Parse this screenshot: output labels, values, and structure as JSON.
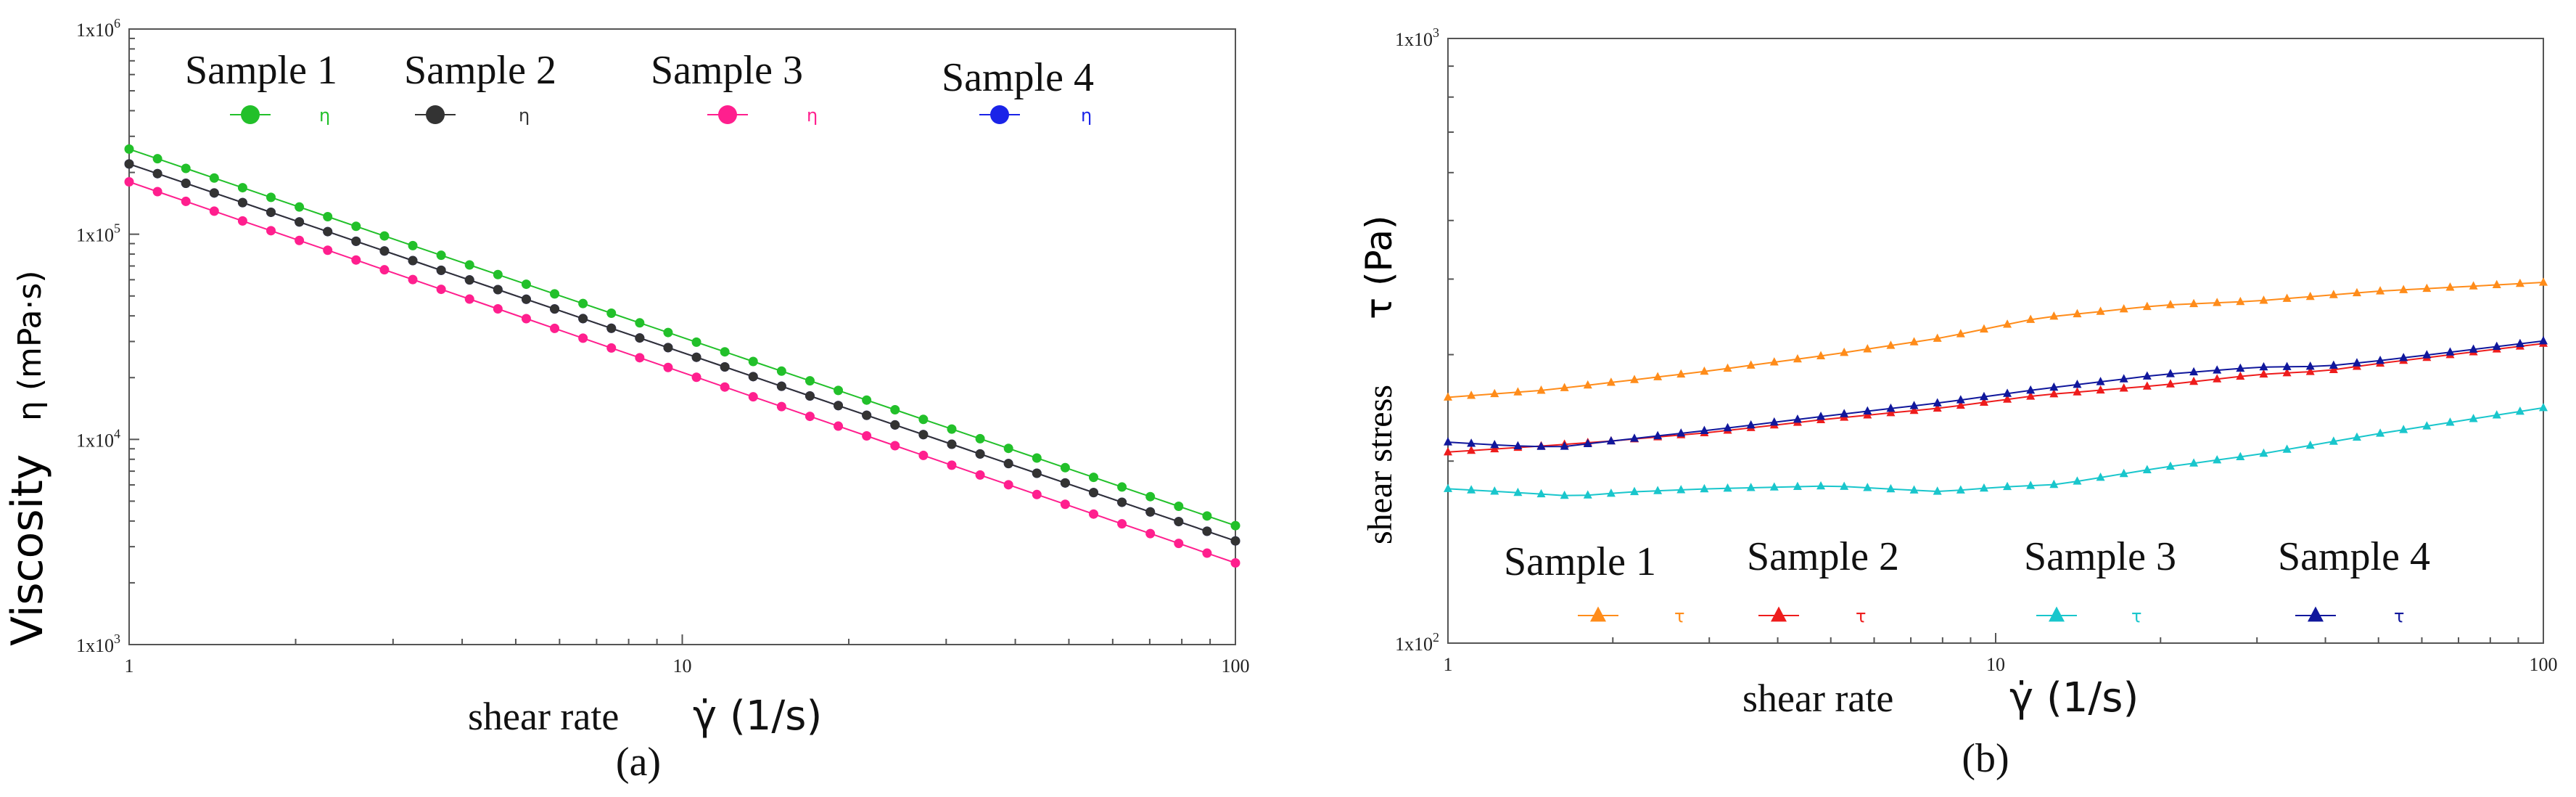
{
  "chart_data": [
    {
      "type": "line",
      "panel_label": "(a)",
      "title": "",
      "xlabel_prefix": "shear rate",
      "xlabel_symbol": "γ̇ (1/s)",
      "ylabel_prefix": "Viscosity",
      "ylabel_symbol": "η (mPa·s)",
      "xscale": "log",
      "yscale": "log",
      "xlim": [
        1,
        100
      ],
      "ylim": [
        1000,
        1000000
      ],
      "xticks": [
        {
          "value": 1,
          "label": "1"
        },
        {
          "value": 10,
          "label": "10"
        },
        {
          "value": 100,
          "label": "100"
        }
      ],
      "yticks": [
        {
          "value": 1000,
          "base": "1x10",
          "exp": "3"
        },
        {
          "value": 10000,
          "base": "1x10",
          "exp": "4"
        },
        {
          "value": 100000,
          "base": "1x10",
          "exp": "5"
        },
        {
          "value": 1000000,
          "base": "1x10",
          "exp": "6"
        }
      ],
      "grid": false,
      "legend_position": "top",
      "points_per_series": 40,
      "series": [
        {
          "name": "Sample 1",
          "symbol": "η",
          "marker": "circle",
          "color": "#22c02a",
          "y_start": 260000,
          "y_end": 3800
        },
        {
          "name": "Sample 2",
          "symbol": "η",
          "marker": "circle",
          "color": "#333333",
          "y_start": 220000,
          "y_end": 3200
        },
        {
          "name": "Sample 3",
          "symbol": "η",
          "marker": "circle",
          "color": "#ff1f8e",
          "y_start": 180000,
          "y_end": 2500
        },
        {
          "name": "Sample 4",
          "symbol": "η",
          "marker": "circle",
          "color": "#1a23e8",
          "y_start": 220000,
          "y_end": 3200
        }
      ]
    },
    {
      "type": "line",
      "panel_label": "(b)",
      "title": "",
      "xlabel_prefix": "shear rate",
      "xlabel_symbol": "γ̇ (1/s)",
      "ylabel_prefix": "shear stress",
      "ylabel_symbol": "τ (Pa)",
      "xscale": "log",
      "yscale": "log",
      "xlim": [
        1,
        100
      ],
      "ylim": [
        100,
        1000
      ],
      "xticks": [
        {
          "value": 1,
          "label": "1"
        },
        {
          "value": 10,
          "label": "10"
        },
        {
          "value": 100,
          "label": "100"
        }
      ],
      "yticks": [
        {
          "value": 100,
          "base": "1x10",
          "exp": "2"
        },
        {
          "value": 1000,
          "base": "1x10",
          "exp": "3"
        }
      ],
      "grid": false,
      "legend_position": "bottom",
      "series": [
        {
          "name": "Sample 1",
          "symbol": "τ",
          "marker": "triangle",
          "color": "#ff8c1a",
          "x": [
            1,
            1.5,
            2,
            3,
            5,
            8,
            12,
            20,
            30,
            50,
            100
          ],
          "y": [
            255,
            262,
            270,
            282,
            300,
            320,
            345,
            362,
            368,
            382,
            395
          ]
        },
        {
          "name": "Sample 2",
          "symbol": "τ",
          "marker": "triangle",
          "color": "#ee1c1c",
          "x": [
            1,
            1.5,
            2,
            3,
            5,
            8,
            12,
            20,
            30,
            40,
            50,
            100
          ],
          "y": [
            207,
            212,
            216,
            223,
            235,
            245,
            257,
            267,
            278,
            282,
            290,
            313
          ]
        },
        {
          "name": "Sample 3",
          "symbol": "τ",
          "marker": "triangle",
          "color": "#19c6cc",
          "x": [
            1,
            1.4,
            1.7,
            2.2,
            3,
            5,
            8,
            10,
            13,
            20,
            30,
            50,
            100
          ],
          "y": [
            180,
            177,
            175,
            178,
            180,
            182,
            178,
            181,
            183,
            195,
            205,
            222,
            245
          ]
        },
        {
          "name": "Sample 4",
          "symbol": "τ",
          "marker": "triangle",
          "color": "#10179c",
          "x": [
            1,
            1.3,
            1.6,
            2,
            3,
            5,
            8,
            12,
            20,
            30,
            40,
            50,
            100
          ],
          "y": [
            215,
            212,
            211,
            216,
            225,
            238,
            250,
            263,
            278,
            286,
            287,
            293,
            316
          ]
        }
      ]
    }
  ]
}
